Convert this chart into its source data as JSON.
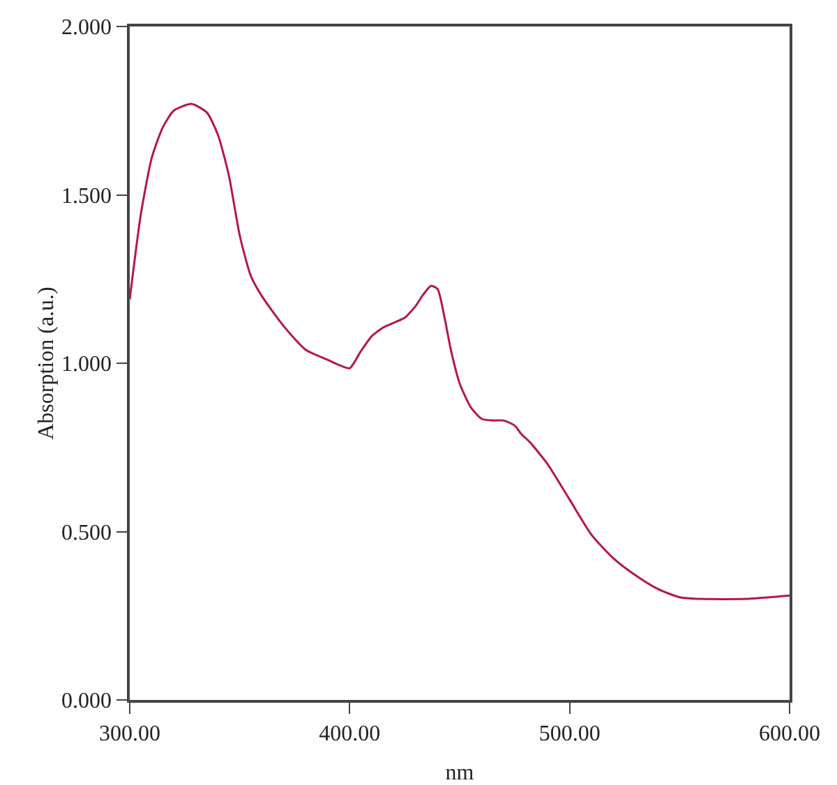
{
  "chart_data": {
    "type": "line",
    "xlabel": "nm",
    "ylabel": "Absorption (a.u.)",
    "x": [
      300,
      305,
      310,
      315,
      320,
      328,
      335,
      340,
      345,
      350,
      355,
      360,
      370,
      380,
      390,
      395,
      400,
      405,
      410,
      415,
      420,
      425,
      430,
      433,
      437,
      440,
      443,
      446,
      450,
      455,
      460,
      465,
      470,
      475,
      478,
      482,
      490,
      500,
      510,
      520,
      530,
      540,
      550,
      560,
      580,
      600
    ],
    "series": [
      {
        "color": "#b5174a",
        "values": [
          1.19,
          1.44,
          1.61,
          1.7,
          1.75,
          1.77,
          1.745,
          1.68,
          1.56,
          1.38,
          1.26,
          1.2,
          1.11,
          1.04,
          1.01,
          0.995,
          0.985,
          1.035,
          1.08,
          1.105,
          1.12,
          1.135,
          1.17,
          1.2,
          1.23,
          1.22,
          1.14,
          1.04,
          0.94,
          0.87,
          0.835,
          0.83,
          0.83,
          0.815,
          0.79,
          0.765,
          0.7,
          0.595,
          0.49,
          0.42,
          0.37,
          0.33,
          0.305,
          0.3,
          0.3,
          0.31
        ]
      }
    ],
    "xlim": [
      300,
      600
    ],
    "xticks": [
      {
        "value": 300,
        "label": "300.00"
      },
      {
        "value": 400,
        "label": "400.00"
      },
      {
        "value": 500,
        "label": "500.00"
      },
      {
        "value": 600,
        "label": "600.00"
      }
    ],
    "ylim": [
      0,
      2
    ],
    "yticks": [
      {
        "value": 0,
        "label": "0.000"
      },
      {
        "value": 0.5,
        "label": "0.500"
      },
      {
        "value": 1,
        "label": "1.000"
      },
      {
        "value": 1.5,
        "label": "1.500"
      },
      {
        "value": 2,
        "label": "2.000"
      }
    ],
    "grid": false,
    "marker": "none",
    "line_style": "solid"
  }
}
